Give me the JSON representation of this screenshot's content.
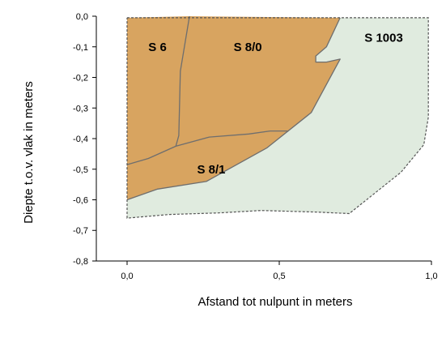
{
  "chart_data": {
    "type": "area",
    "xlabel": "Afstand tot nulpunt in meters",
    "ylabel": "Diepte t.o.v. vlak in meters",
    "xlim": [
      0.0,
      1.0
    ],
    "ylim": [
      -0.8,
      0.0
    ],
    "x_ticks": [
      0.0,
      0.5,
      1.0
    ],
    "x_tick_labels": [
      "0,0",
      "0,5",
      "1,0"
    ],
    "y_ticks": [
      0.0,
      -0.1,
      -0.2,
      -0.3,
      -0.4,
      -0.5,
      -0.6,
      -0.7,
      -0.8
    ],
    "y_tick_labels": [
      "0,0",
      "-0,1",
      "-0,2",
      "-0,3",
      "-0,4",
      "-0,5",
      "-0,6",
      "-0,7",
      "-0,8"
    ],
    "grid": false,
    "colors": {
      "fill_layer": "#D8A460",
      "fill_s1003": "#E0EBDF",
      "boundary": "#6E6E6E",
      "dashed_outline": "#555555"
    },
    "regions": [
      {
        "label": "S 1003",
        "fill": "fill_s1003",
        "label_at": [
          0.78,
          -0.07
        ],
        "points": [
          [
            0.7,
            -0.005
          ],
          [
            0.99,
            -0.005
          ],
          [
            0.99,
            -0.33
          ],
          [
            0.975,
            -0.42
          ],
          [
            0.9,
            -0.51
          ],
          [
            0.73,
            -0.645
          ],
          [
            0.62,
            -0.64
          ],
          [
            0.44,
            -0.635
          ],
          [
            0.3,
            -0.643
          ],
          [
            0.14,
            -0.648
          ],
          [
            0.0,
            -0.66
          ],
          [
            0.0,
            -0.6
          ],
          [
            0.1,
            -0.565
          ],
          [
            0.26,
            -0.54
          ],
          [
            0.46,
            -0.43
          ],
          [
            0.605,
            -0.315
          ],
          [
            0.7,
            -0.14
          ],
          [
            0.655,
            -0.15
          ],
          [
            0.62,
            -0.15
          ],
          [
            0.62,
            -0.13
          ],
          [
            0.655,
            -0.1
          ],
          [
            0.7,
            -0.005
          ]
        ]
      },
      {
        "label": "S 6",
        "fill": "fill_layer",
        "label_at": [
          0.07,
          -0.1
        ],
        "points": [
          [
            0.0,
            -0.005
          ],
          [
            0.205,
            0.0
          ],
          [
            0.175,
            -0.18
          ],
          [
            0.17,
            -0.39
          ],
          [
            0.16,
            -0.425
          ],
          [
            0.07,
            -0.465
          ],
          [
            0.0,
            -0.485
          ]
        ]
      },
      {
        "label": "S 8/0",
        "fill": "fill_layer",
        "label_at": [
          0.35,
          -0.1
        ],
        "points": [
          [
            0.205,
            0.0
          ],
          [
            0.7,
            -0.005
          ],
          [
            0.655,
            -0.1
          ],
          [
            0.62,
            -0.13
          ],
          [
            0.62,
            -0.15
          ],
          [
            0.655,
            -0.15
          ],
          [
            0.7,
            -0.14
          ],
          [
            0.605,
            -0.315
          ],
          [
            0.53,
            -0.375
          ],
          [
            0.47,
            -0.375
          ],
          [
            0.4,
            -0.385
          ],
          [
            0.27,
            -0.395
          ],
          [
            0.16,
            -0.425
          ],
          [
            0.17,
            -0.39
          ],
          [
            0.175,
            -0.18
          ]
        ]
      },
      {
        "label": "S 8/1",
        "fill": "fill_layer",
        "label_at": [
          0.23,
          -0.5
        ],
        "points": [
          [
            0.0,
            -0.485
          ],
          [
            0.07,
            -0.465
          ],
          [
            0.16,
            -0.425
          ],
          [
            0.27,
            -0.395
          ],
          [
            0.4,
            -0.385
          ],
          [
            0.47,
            -0.375
          ],
          [
            0.53,
            -0.375
          ],
          [
            0.46,
            -0.43
          ],
          [
            0.26,
            -0.54
          ],
          [
            0.1,
            -0.565
          ],
          [
            0.0,
            -0.6
          ]
        ]
      }
    ],
    "boundaries": [
      [
        [
          0.205,
          0.0
        ],
        [
          0.175,
          -0.18
        ],
        [
          0.17,
          -0.39
        ],
        [
          0.16,
          -0.425
        ]
      ],
      [
        [
          0.0,
          -0.485
        ],
        [
          0.07,
          -0.465
        ],
        [
          0.16,
          -0.425
        ],
        [
          0.27,
          -0.395
        ],
        [
          0.4,
          -0.385
        ],
        [
          0.47,
          -0.375
        ],
        [
          0.53,
          -0.375
        ]
      ],
      [
        [
          0.0,
          -0.6
        ],
        [
          0.1,
          -0.565
        ],
        [
          0.26,
          -0.54
        ],
        [
          0.46,
          -0.43
        ],
        [
          0.605,
          -0.315
        ],
        [
          0.7,
          -0.14
        ],
        [
          0.655,
          -0.15
        ],
        [
          0.62,
          -0.15
        ],
        [
          0.62,
          -0.13
        ],
        [
          0.655,
          -0.1
        ],
        [
          0.7,
          -0.005
        ]
      ]
    ],
    "dashed_outline": [
      [
        0.0,
        -0.005
      ],
      [
        0.99,
        -0.005
      ],
      [
        0.99,
        -0.33
      ],
      [
        0.975,
        -0.42
      ],
      [
        0.9,
        -0.51
      ],
      [
        0.73,
        -0.645
      ],
      [
        0.62,
        -0.64
      ],
      [
        0.44,
        -0.635
      ],
      [
        0.3,
        -0.643
      ],
      [
        0.14,
        -0.648
      ],
      [
        0.0,
        -0.66
      ],
      [
        0.0,
        -0.005
      ]
    ]
  }
}
